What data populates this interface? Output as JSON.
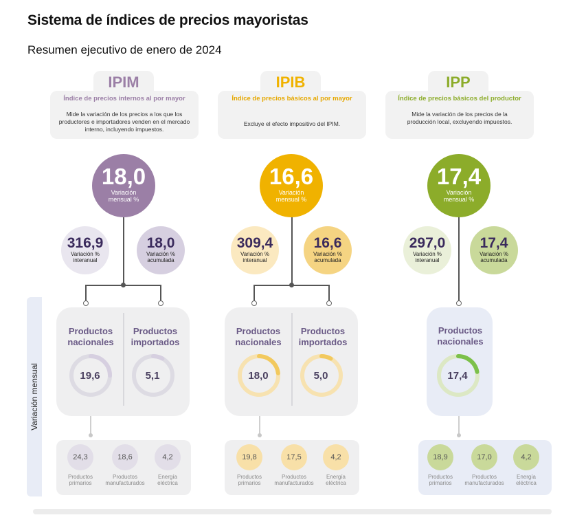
{
  "header": {
    "title": "Sistema de índices de precios mayoristas",
    "subtitle": "Resumen ejecutivo de enero de 2024"
  },
  "side_label": "Variación mensual",
  "colors": {
    "ipim": "#9b7fa6",
    "ipib": "#f0b200",
    "ipp": "#8cac2a"
  },
  "indices": [
    {
      "id": "ipim",
      "name": "IPIM",
      "full_name": "Índice de precios internos al por mayor",
      "description": "Mide la variación de los precios a los que los productores e importadores venden en el mercado interno, incluyendo impuestos.",
      "monthly": {
        "value": "18,0",
        "label": "Variación mensual %"
      },
      "interannual": {
        "value": "316,9",
        "label": "Variación % interanual"
      },
      "accumulated": {
        "value": "18,0",
        "label": "Variación % acumulada"
      },
      "products": [
        {
          "label": "Productos nacionales",
          "value": "19,6",
          "fill": 0.25
        },
        {
          "label": "Productos importados",
          "value": "5,1",
          "fill": 0.08
        }
      ],
      "subcategories": [
        {
          "value": "24,3",
          "label": "Productos primarios"
        },
        {
          "value": "18,6",
          "label": "Productos manufacturados"
        },
        {
          "value": "4,2",
          "label": "Energía eléctrica"
        }
      ]
    },
    {
      "id": "ipib",
      "name": "IPIB",
      "full_name": "Índice de precios básicos al por mayor",
      "description": "Excluye el efecto impositivo del IPIM.",
      "monthly": {
        "value": "16,6",
        "label": "Variación mensual %"
      },
      "interannual": {
        "value": "309,4",
        "label": "Variación % interanual"
      },
      "accumulated": {
        "value": "16,6",
        "label": "Variación % acumulada"
      },
      "products": [
        {
          "label": "Productos nacionales",
          "value": "18,0",
          "fill": 0.23
        },
        {
          "label": "Productos importados",
          "value": "5,0",
          "fill": 0.08
        }
      ],
      "subcategories": [
        {
          "value": "19,8",
          "label": "Productos primarios"
        },
        {
          "value": "17,5",
          "label": "Productos manufacturados"
        },
        {
          "value": "4,2",
          "label": "Energía eléctrica"
        }
      ]
    },
    {
      "id": "ipp",
      "name": "IPP",
      "full_name": "Índice de precios básicos del productor",
      "description": "Mide la variación de los precios de la producción local, excluyendo impuestos.",
      "monthly": {
        "value": "17,4",
        "label": "Variación mensual %"
      },
      "interannual": {
        "value": "297,0",
        "label": "Variación % interanual"
      },
      "accumulated": {
        "value": "17,4",
        "label": "Variación % acumulada"
      },
      "products": [
        {
          "label": "Productos nacionales",
          "value": "17,4",
          "fill": 0.22
        }
      ],
      "subcategories": [
        {
          "value": "18,9",
          "label": "Productos primarios"
        },
        {
          "value": "17,0",
          "label": "Productos manufacturados"
        },
        {
          "value": "4,2",
          "label": "Energía eléctrica"
        }
      ]
    }
  ]
}
